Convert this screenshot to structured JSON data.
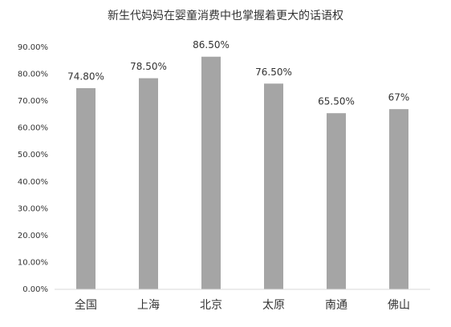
{
  "chart_data": {
    "type": "bar",
    "title": "新生代妈妈在婴童消费中也掌握着更大的话语权",
    "categories": [
      "全国",
      "上海",
      "北京",
      "太原",
      "南通",
      "佛山"
    ],
    "values": [
      74.8,
      78.5,
      86.5,
      76.5,
      65.5,
      67
    ],
    "value_labels": [
      "74.80%",
      "78.50%",
      "86.50%",
      "76.50%",
      "65.50%",
      "67%"
    ],
    "color": "#a5a5a5",
    "ylim": [
      0,
      90
    ],
    "yticks": [
      {
        "value": 0,
        "label": "0.00%"
      },
      {
        "value": 10,
        "label": "10.00%"
      },
      {
        "value": 20,
        "label": "20.00%"
      },
      {
        "value": 30,
        "label": "30.00%"
      },
      {
        "value": 40,
        "label": "40.00%"
      },
      {
        "value": 50,
        "label": "50.00%"
      },
      {
        "value": 60,
        "label": "60.00%"
      },
      {
        "value": 70,
        "label": "70.00%"
      },
      {
        "value": 80,
        "label": "80.00%"
      },
      {
        "value": 90,
        "label": "90.00%"
      }
    ],
    "grid": false
  }
}
